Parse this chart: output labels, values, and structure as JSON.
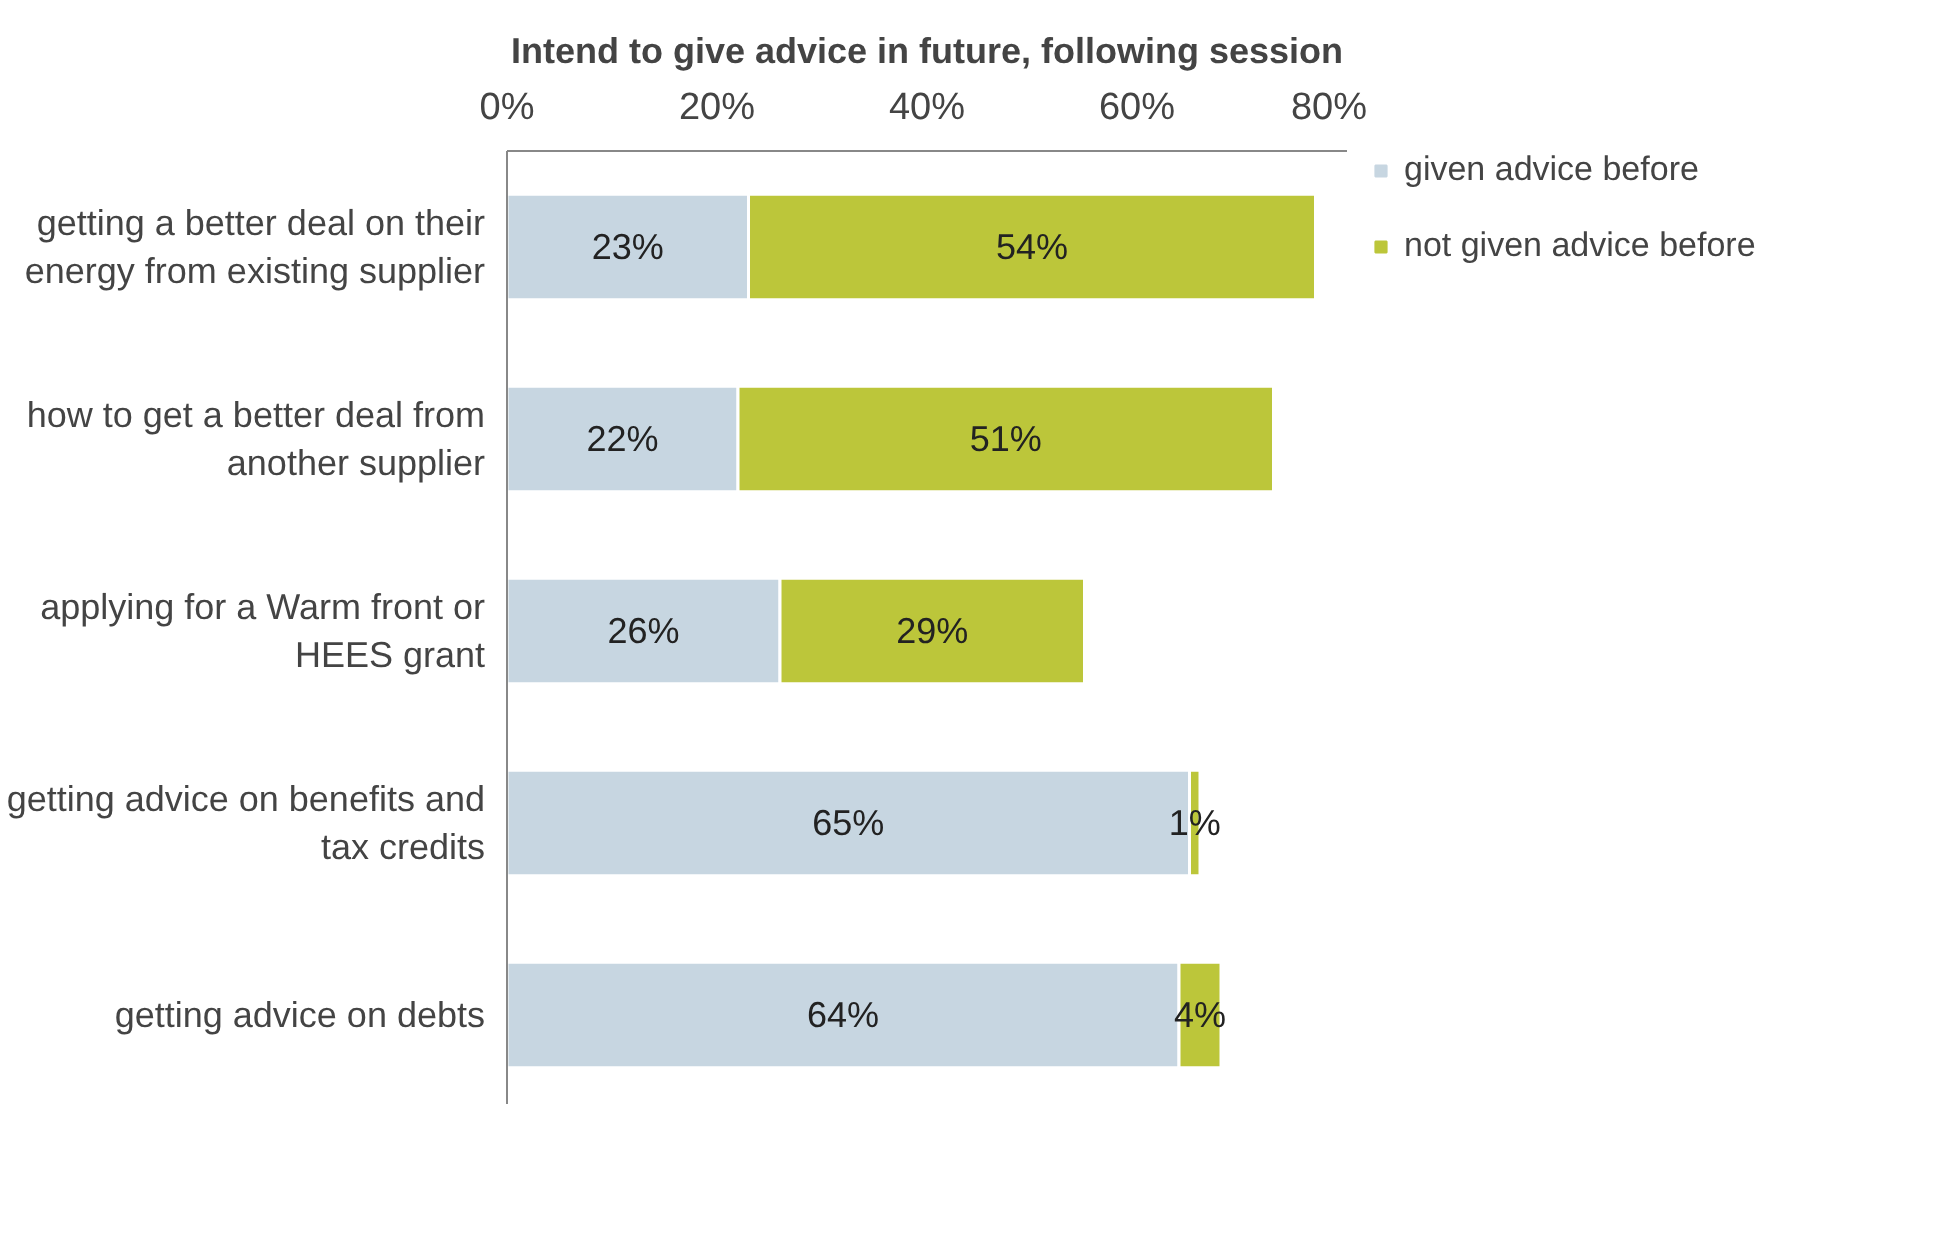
{
  "chart_data": {
    "type": "bar",
    "orientation": "horizontal",
    "stacked": true,
    "title": "Intend to give advice in future, following session",
    "categories": [
      "getting a better deal on their energy from existing supplier",
      "how to get a better deal from another supplier",
      "applying for a Warm front or HEES grant",
      "getting advice on benefits and tax credits",
      "getting advice on debts"
    ],
    "series": [
      {
        "name": "given advice before",
        "color": "#c7d6e1",
        "values": [
          23,
          22,
          26,
          65,
          64
        ],
        "value_labels": [
          "23%",
          "22%",
          "26%",
          "65%",
          "64%"
        ]
      },
      {
        "name": "not given advice before",
        "color": "#bcc63a",
        "values": [
          54,
          51,
          29,
          1,
          4
        ],
        "value_labels": [
          "54%",
          "51%",
          "29%",
          "1%",
          "4%"
        ]
      }
    ],
    "xlim": [
      0,
      80
    ],
    "xticks": [
      {
        "value": 0,
        "label": "0%"
      },
      {
        "value": 20,
        "label": "20%"
      },
      {
        "value": 40,
        "label": "40%"
      },
      {
        "value": 60,
        "label": "60%"
      },
      {
        "value": 80,
        "label": "80%"
      }
    ],
    "grid": false,
    "legend": "top right"
  }
}
